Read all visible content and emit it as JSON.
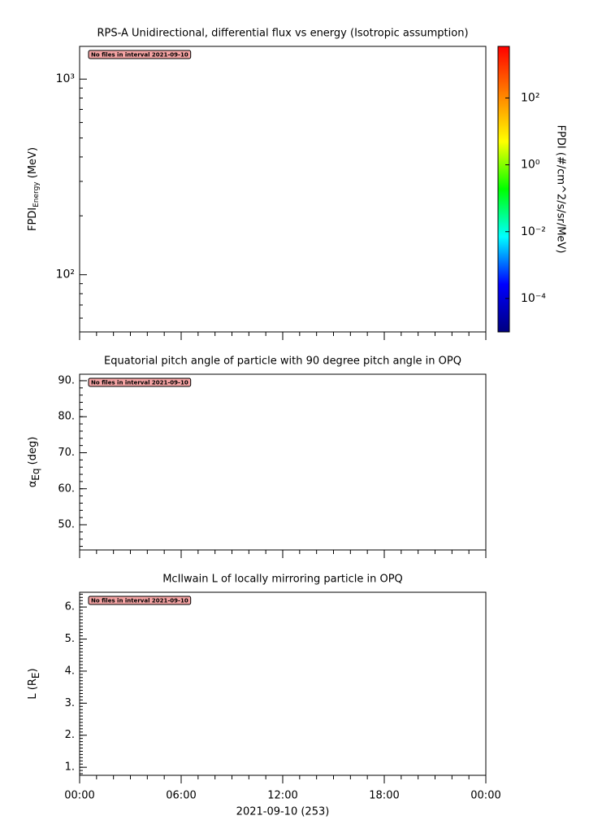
{
  "chart_data": [
    {
      "type": "spectrogram",
      "title": "RPS-A Unidirectional, differential flux vs energy (Isotropic assumption)",
      "ylabel": {
        "text": "FPDI",
        "sub": "Energy",
        "suffix": " (MeV)"
      },
      "log": true,
      "ylim": [
        51,
        1470
      ],
      "yticks": [
        {
          "value": 100,
          "label": "10²"
        },
        {
          "value": 1000,
          "label": "10³"
        }
      ],
      "annotation": "No files in interval 2021-09-10",
      "colorbar": {
        "label": "FPDI (#/cm^2/s/sr/MeV)",
        "log": true,
        "lim": [
          1e-05,
          3500
        ],
        "ticks": [
          {
            "value": 0.0001,
            "label": "10⁻⁴"
          },
          {
            "value": 0.01,
            "label": "10⁻²"
          },
          {
            "value": 1,
            "label": "10⁰"
          },
          {
            "value": 100,
            "label": "10²"
          }
        ],
        "colors": [
          "#00007f",
          "#0000ff",
          "#00ffff",
          "#00ff00",
          "#ffff00",
          "#ff8000",
          "#ff0000"
        ]
      }
    },
    {
      "type": "line",
      "title": "Equatorial pitch angle of particle with 90 degree pitch angle in OPQ",
      "ylabel": {
        "text": "α",
        "sub": "Eq",
        "suffix": " (deg)"
      },
      "ylim": [
        43,
        91.8
      ],
      "yticks": [
        {
          "value": 50,
          "label": "50."
        },
        {
          "value": 60,
          "label": "60."
        },
        {
          "value": 70,
          "label": "70."
        },
        {
          "value": 80,
          "label": "80."
        },
        {
          "value": 90,
          "label": "90."
        }
      ],
      "annotation": "No files in interval 2021-09-10"
    },
    {
      "type": "line",
      "title": "McIlwain L of locally mirroring particle in OPQ",
      "ylabel": {
        "text": "L (R",
        "sub": "E",
        "suffix": ")"
      },
      "ylim": [
        0.75,
        6.46
      ],
      "yticks": [
        {
          "value": 1,
          "label": "1."
        },
        {
          "value": 2,
          "label": "2."
        },
        {
          "value": 3,
          "label": "3."
        },
        {
          "value": 4,
          "label": "4."
        },
        {
          "value": 5,
          "label": "5."
        },
        {
          "value": 6,
          "label": "6."
        }
      ],
      "annotation": "No files in interval 2021-09-10",
      "xlim": [
        0,
        24
      ],
      "xticks": [
        {
          "value": 0,
          "label": "00:00"
        },
        {
          "value": 6,
          "label": "06:00"
        },
        {
          "value": 12,
          "label": "12:00"
        },
        {
          "value": 18,
          "label": "18:00"
        },
        {
          "value": 24,
          "label": "00:00"
        }
      ],
      "xlabel": "2021-09-10 (253)"
    }
  ]
}
